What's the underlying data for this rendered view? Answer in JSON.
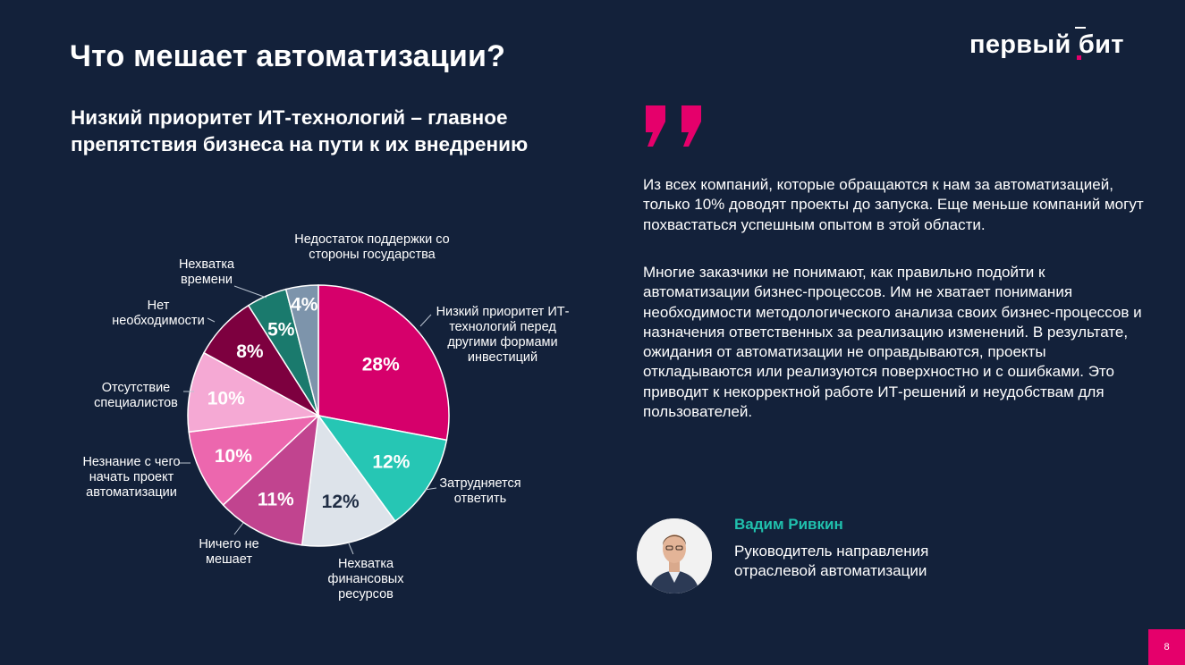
{
  "header": {
    "title": "Что мешает автоматизации?",
    "logo_text": "первый бит"
  },
  "subtitle": "Низкий приоритет ИТ-технологий – главное препятствия бизнеса на пути к их внедрению",
  "quote": {
    "paragraph1": "Из всех компаний, которые обращаются к нам за автоматизацией, только 10% доводят проекты до запуска. Еще меньше компаний могут похвастаться успешным опытом в этой области.",
    "paragraph2": "Многие заказчики не понимают, как правильно подойти к автоматизации бизнес-процессов. Им не хватает понимания необходимости методологического анализа своих бизнес-процессов и назначения ответственных за реализацию изменений. В результате, ожидания от автоматизации не оправдываются, проекты откладываются или реализуются поверхностно и с ошибками. Это приводит к некорректной работе ИТ-решений и неудобствам для пользователей."
  },
  "person": {
    "name": "Вадим Ривкин",
    "role": "Руководитель направления отраслевой автоматизации"
  },
  "page_number": "8",
  "colors": {
    "background": "#13213a",
    "accent": "#e5006b",
    "name_accent": "#20c1ad"
  },
  "chart_data": {
    "type": "pie",
    "title": "",
    "slices": [
      {
        "label": "Низкий приоритет ИТ-технологий перед другими формами инвестиций",
        "value": 28,
        "display": "28%",
        "color": "#d6006b"
      },
      {
        "label": "Затрудняется ответить",
        "value": 12,
        "display": "12%",
        "color": "#26c6b4"
      },
      {
        "label": "Нехватка финансовых ресурсов",
        "value": 12,
        "display": "12%",
        "color": "#dde3ea"
      },
      {
        "label": "Ничего не мешает",
        "value": 11,
        "display": "11%",
        "color": "#c1448f"
      },
      {
        "label": "Незнание с чего начать проект автоматизации",
        "value": 10,
        "display": "10%",
        "color": "#ec67ae"
      },
      {
        "label": "Отсутствие специалистов",
        "value": 10,
        "display": "10%",
        "color": "#f5a9d4"
      },
      {
        "label": "Нет необходимости",
        "value": 8,
        "display": "8%",
        "color": "#7d003f"
      },
      {
        "label": "Нехватка времени",
        "value": 5,
        "display": "5%",
        "color": "#1a7a6d"
      },
      {
        "label": "Недостаток поддержки со стороны государства",
        "value": 4,
        "display": "4%",
        "color": "#7d94ab"
      }
    ]
  }
}
